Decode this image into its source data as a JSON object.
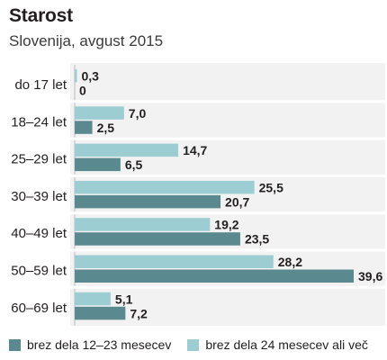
{
  "chart_data": {
    "type": "bar",
    "orientation": "horizontal",
    "title": "Starost",
    "subtitle": "Slovenija, avgust 2015",
    "categories": [
      "do 17 let",
      "18–24 let",
      "25–29 let",
      "30–39 let",
      "40–49 let",
      "50–59 let",
      "60–69 let"
    ],
    "series": [
      {
        "name": "brez dela 24 mesecev ali več",
        "color": "#9ccdd2",
        "values": [
          0.3,
          7.0,
          14.7,
          25.5,
          19.2,
          28.2,
          5.1
        ],
        "labels": [
          "0,3",
          "7,0",
          "14,7",
          "25,5",
          "19,2",
          "28,2",
          "5,1"
        ]
      },
      {
        "name": "brez dela 12–23 mesecev",
        "color": "#5a8a8f",
        "values": [
          0,
          2.5,
          6.5,
          20.7,
          23.5,
          39.6,
          7.2
        ],
        "labels": [
          "0",
          "2,5",
          "6,5",
          "20,7",
          "23,5",
          "39,6",
          "7,2"
        ]
      }
    ],
    "legend_order": [
      1,
      0
    ],
    "legend_position": "bottom",
    "grid": true,
    "xlim": [
      0,
      40
    ]
  }
}
